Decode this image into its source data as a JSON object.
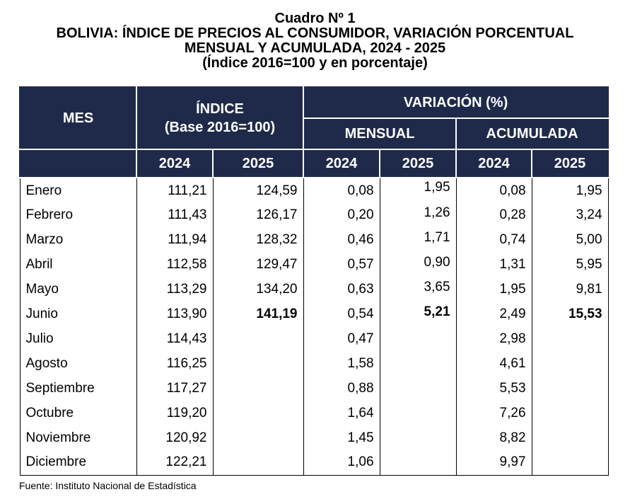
{
  "title": {
    "line1": "Cuadro Nº 1",
    "line2": "BOLIVIA: ÍNDICE DE PRECIOS AL CONSUMIDOR, VARIACIÓN PORCENTUAL",
    "line3": "MENSUAL Y ACUMULADA, 2024 - 2025",
    "line4": "(Índice 2016=100 y en porcentaje)"
  },
  "table": {
    "header": {
      "mes": "MES",
      "indice": "ÍNDICE",
      "indice_base": "(Base 2016=100)",
      "variacion": "VARIACIÓN (%)",
      "mensual": "MENSUAL",
      "acumulada": "ACUMULADA",
      "years": [
        "2024",
        "2025",
        "2024",
        "2025",
        "2024",
        "2025"
      ]
    },
    "rows": [
      {
        "mes": "Enero",
        "indice_2024": "111,21",
        "indice_2025": "124,59",
        "mensual_2024": "0,08",
        "mensual_2025": "1,95",
        "acumulada_2024": "0,08",
        "acumulada_2025": "1,95"
      },
      {
        "mes": "Febrero",
        "indice_2024": "111,43",
        "indice_2025": "126,17",
        "mensual_2024": "0,20",
        "mensual_2025": "1,26",
        "acumulada_2024": "0,28",
        "acumulada_2025": "3,24"
      },
      {
        "mes": "Marzo",
        "indice_2024": "111,94",
        "indice_2025": "128,32",
        "mensual_2024": "0,46",
        "mensual_2025": "1,71",
        "acumulada_2024": "0,74",
        "acumulada_2025": "5,00"
      },
      {
        "mes": "Abril",
        "indice_2024": "112,58",
        "indice_2025": "129,47",
        "mensual_2024": "0,57",
        "mensual_2025": "0,90",
        "acumulada_2024": "1,31",
        "acumulada_2025": "5,95"
      },
      {
        "mes": "Mayo",
        "indice_2024": "113,29",
        "indice_2025": "134,20",
        "mensual_2024": "0,63",
        "mensual_2025": "3,65",
        "acumulada_2024": "1,95",
        "acumulada_2025": "9,81"
      },
      {
        "mes": "Junio",
        "indice_2024": "113,90",
        "indice_2025": "141,19",
        "mensual_2024": "0,54",
        "mensual_2025": "5,21",
        "acumulada_2024": "2,49",
        "acumulada_2025": "15,53"
      },
      {
        "mes": "Julio",
        "indice_2024": "114,43",
        "mensual_2024": "0,47",
        "acumulada_2024": "2,98"
      },
      {
        "mes": "Agosto",
        "indice_2024": "116,25",
        "mensual_2024": "1,58",
        "acumulada_2024": "4,61"
      },
      {
        "mes": "Septiembre",
        "indice_2024": "117,27",
        "mensual_2024": "0,88",
        "acumulada_2024": "5,53"
      },
      {
        "mes": "Octubre",
        "indice_2024": "119,20",
        "mensual_2024": "1,64",
        "acumulada_2024": "7,26"
      },
      {
        "mes": "Noviembre",
        "indice_2024": "120,92",
        "mensual_2024": "1,45",
        "acumulada_2024": "8,82"
      },
      {
        "mes": "Diciembre",
        "indice_2024": "122,21",
        "mensual_2024": "1,06",
        "acumulada_2024": "9,97"
      }
    ]
  },
  "source": "Fuente: Instituto Nacional de Estadística"
}
